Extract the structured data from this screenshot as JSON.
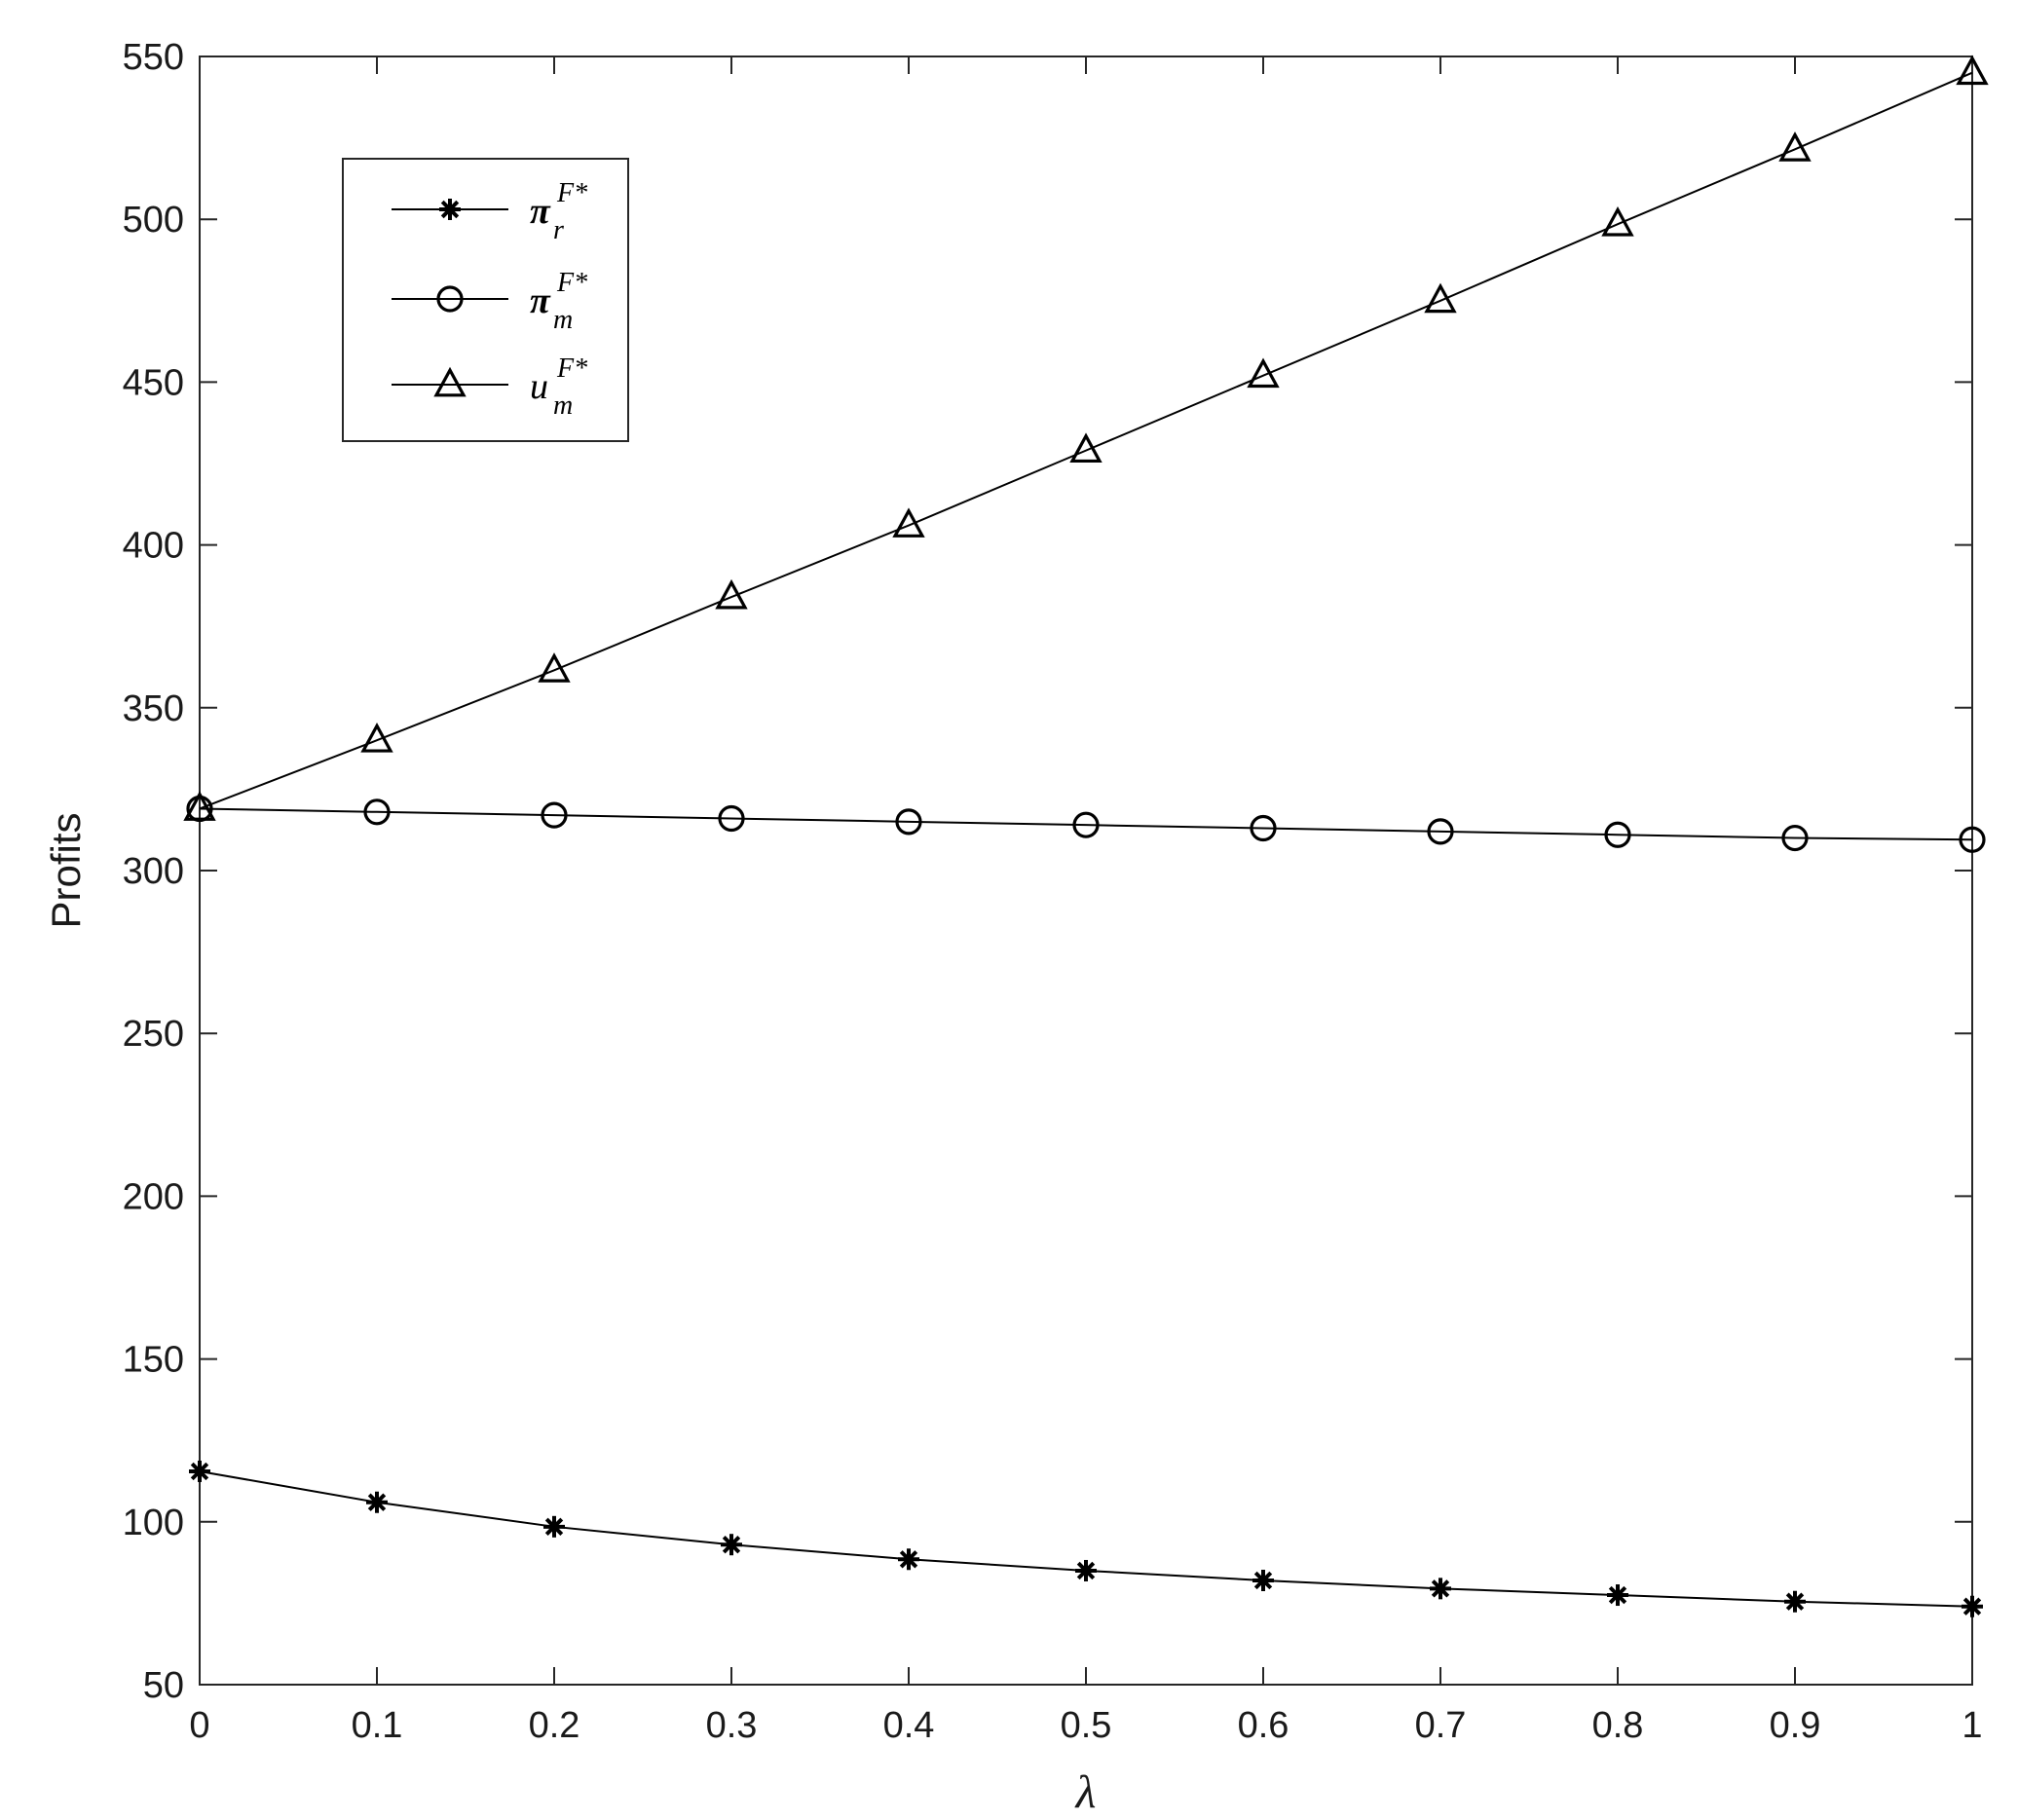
{
  "chart_data": {
    "type": "line",
    "title": "",
    "xlabel": "λ",
    "ylabel": "Profits",
    "xlim": [
      0,
      1
    ],
    "ylim": [
      50,
      550
    ],
    "xticks": [
      "0",
      "0.1",
      "0.2",
      "0.3",
      "0.4",
      "0.5",
      "0.6",
      "0.7",
      "0.8",
      "0.9",
      "1"
    ],
    "yticks": [
      "50",
      "100",
      "150",
      "200",
      "250",
      "300",
      "350",
      "400",
      "450",
      "500",
      "550"
    ],
    "grid": false,
    "legend_position": "top-left",
    "x": [
      0,
      0.1,
      0.2,
      0.3,
      0.4,
      0.5,
      0.6,
      0.7,
      0.8,
      0.9,
      1
    ],
    "series": [
      {
        "name": "π_r^{F*}",
        "legend": {
          "base": "π",
          "sub": "r",
          "sup": "F*"
        },
        "marker": "asterisk",
        "color": "#000000",
        "values": [
          115.5,
          106,
          98.5,
          93,
          88.5,
          85,
          82,
          79.5,
          77.5,
          75.5,
          74
        ]
      },
      {
        "name": "π_m^{F*}",
        "legend": {
          "base": "π",
          "sub": "m",
          "sup": "F*"
        },
        "marker": "circle",
        "color": "#000000",
        "values": [
          319,
          318,
          317,
          316,
          315,
          314,
          313,
          312,
          311,
          310,
          309.5
        ]
      },
      {
        "name": "u_m^{F*}",
        "legend": {
          "base": "u",
          "sub": "m",
          "sup": "F*"
        },
        "marker": "triangle",
        "color": "#000000",
        "values": [
          319,
          340,
          361.5,
          384,
          406,
          429,
          452,
          475,
          498.5,
          521.5,
          545
        ]
      }
    ]
  }
}
